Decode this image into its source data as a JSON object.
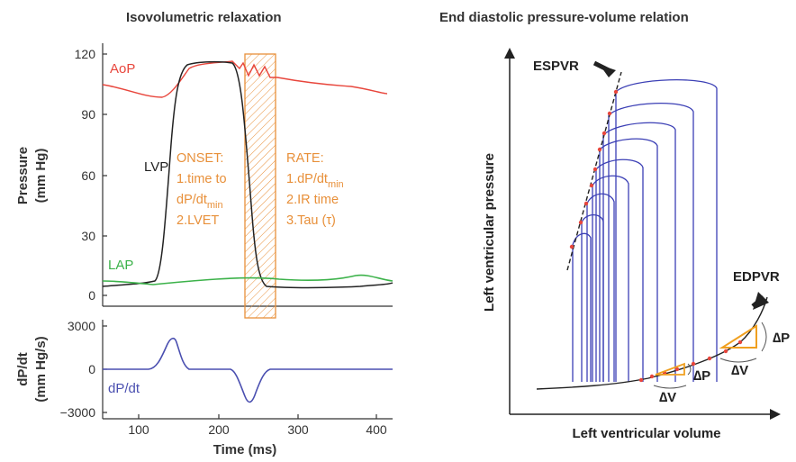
{
  "left_panel": {
    "title": "Isovolumetric relaxation",
    "pressure_axis": {
      "label_line1": "Pressure",
      "label_line2": "(mm Hg)",
      "ticks": [
        "120",
        "90",
        "60",
        "30",
        "0"
      ]
    },
    "dpdt_axis": {
      "label_line1": "dP/dt",
      "label_line2": "(mm Hg/s)",
      "ticks": [
        "3000",
        "0",
        "−3000"
      ]
    },
    "time_axis": {
      "label": "Time (ms)",
      "ticks": [
        "100",
        "200",
        "300",
        "400"
      ]
    },
    "curve_labels": {
      "aop": "AoP",
      "lvp": "LVP",
      "lap": "LAP",
      "dpdt": "dP/dt"
    },
    "onset_box": {
      "line1": "ONSET:",
      "line2": "1.time to",
      "line3_main": "dP/dt",
      "line3_sub": "min",
      "line4": "2.LVET"
    },
    "rate_box": {
      "line1": "RATE:",
      "line2_main": "1.dP/dt",
      "line2_sub": "min",
      "line3": "2.IR time",
      "line4": "3.Tau (τ)"
    },
    "colors": {
      "aop": "#e8463c",
      "lvp": "#222222",
      "lap": "#3cb24a",
      "dpdt": "#4a4fb0",
      "annotation": "#e8903a"
    }
  },
  "right_panel": {
    "title": "End diastolic pressure-volume relation",
    "y_label": "Left ventricular pressure",
    "x_label": "Left ventricular volume",
    "espvr_label": "ESPVR",
    "edpvr_label": "EDPVR",
    "delta_p": "∆P",
    "delta_v": "∆V",
    "colors": {
      "loops": "#3b3fb5",
      "markers": "#e8463c",
      "triangle": "#f0a020"
    }
  }
}
